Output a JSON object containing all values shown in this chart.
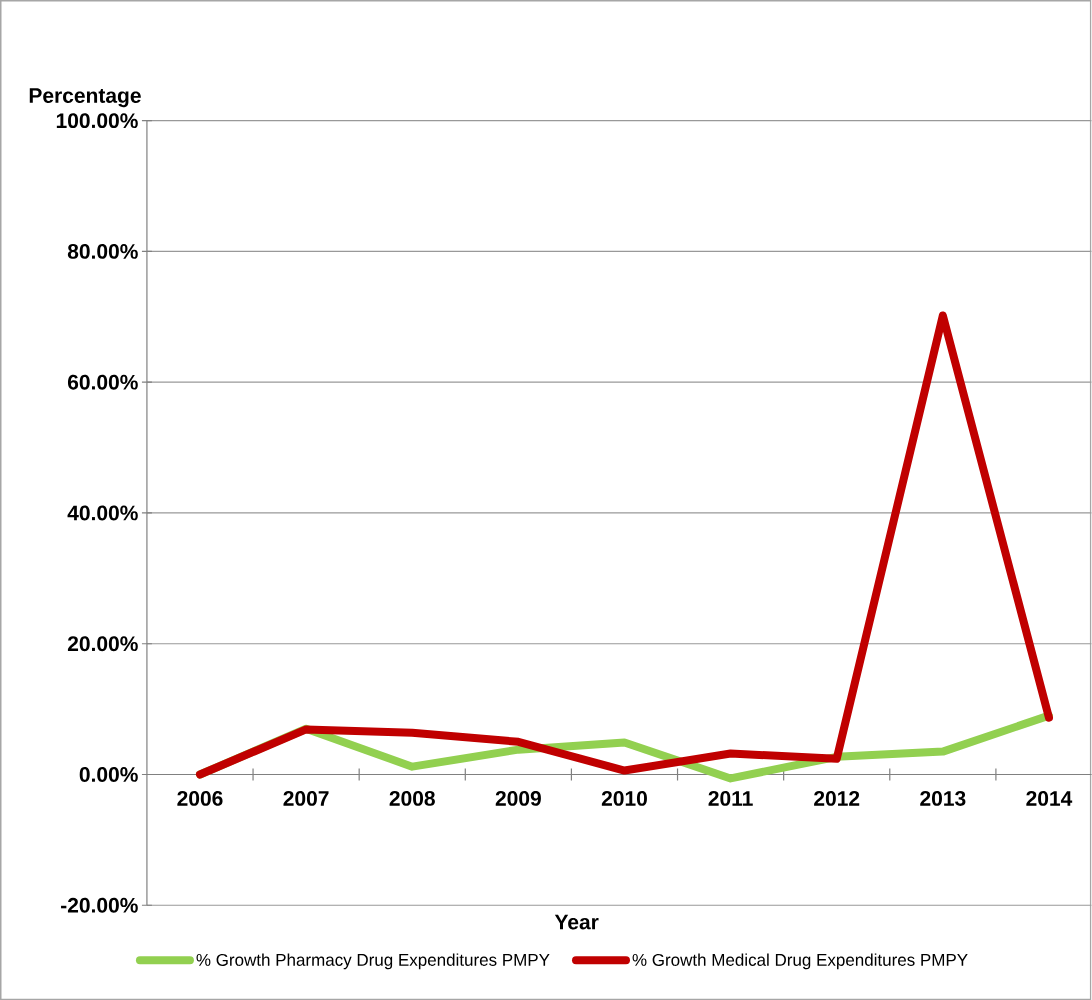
{
  "chart_data": {
    "type": "line",
    "xlabel": "Year",
    "ylabel": "Percentage",
    "categories": [
      "2006",
      "2007",
      "2008",
      "2009",
      "2010",
      "2011",
      "2012",
      "2013",
      "2014"
    ],
    "series": [
      {
        "name": "% Growth Pharmacy Drug Expenditures PMPY",
        "color": "#92d050",
        "values": [
          0,
          7.0,
          1.2,
          3.8,
          4.9,
          -0.6,
          2.7,
          3.5,
          9.0
        ]
      },
      {
        "name": "% Growth Medical Drug Expenditures PMPY",
        "color": "#c00000",
        "values": [
          0,
          6.9,
          6.4,
          5.0,
          0.6,
          3.2,
          2.4,
          70.2,
          8.7
        ]
      }
    ],
    "ylim": [
      -20,
      100
    ],
    "yticks": [
      {
        "value": -20,
        "label": "-20.00%"
      },
      {
        "value": 0,
        "label": "0.00%"
      },
      {
        "value": 20,
        "label": "20.00%"
      },
      {
        "value": 40,
        "label": "40.00%"
      },
      {
        "value": 60,
        "label": "60.00%"
      },
      {
        "value": 80,
        "label": "80.00%"
      },
      {
        "value": 100,
        "label": "100.00%"
      }
    ],
    "grid": "y",
    "legend": "bottom"
  }
}
